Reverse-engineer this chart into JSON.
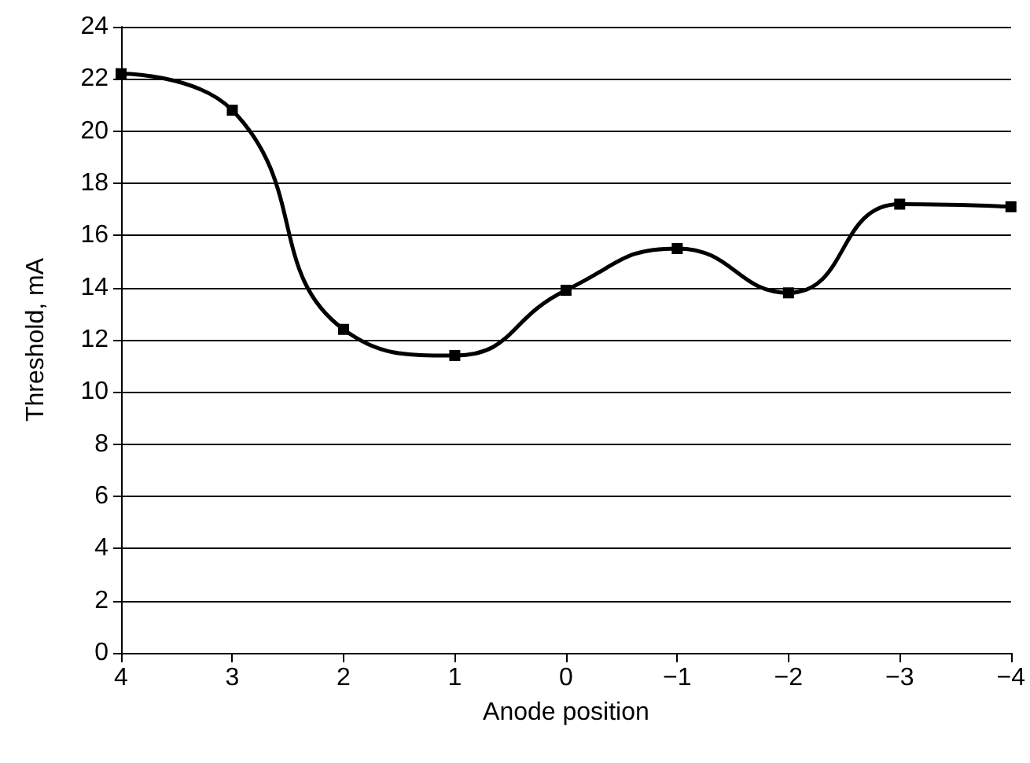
{
  "chart_data": {
    "type": "line",
    "xlabel": "Anode position",
    "ylabel": "Threshold, mA",
    "x": [
      4,
      3,
      2,
      1,
      0,
      -1,
      -2,
      -3,
      -4
    ],
    "series": [
      {
        "color": "#000000",
        "values": [
          22.2,
          20.8,
          12.4,
          11.4,
          13.9,
          15.5,
          13.8,
          17.2,
          17.1
        ]
      }
    ],
    "xlim": [
      4,
      -4
    ],
    "xticks": [
      4,
      3,
      2,
      1,
      0,
      {
        "value": -1,
        "label": "−1"
      },
      {
        "value": -2,
        "label": "−2"
      },
      {
        "value": -3,
        "label": "−3"
      },
      {
        "value": -4,
        "label": "−4"
      }
    ],
    "ylim": [
      0,
      24
    ],
    "yticks": [
      0,
      2,
      4,
      6,
      8,
      10,
      12,
      14,
      16,
      18,
      20,
      22,
      24
    ],
    "grid": "y",
    "marker": "square",
    "line_style": "solid"
  }
}
